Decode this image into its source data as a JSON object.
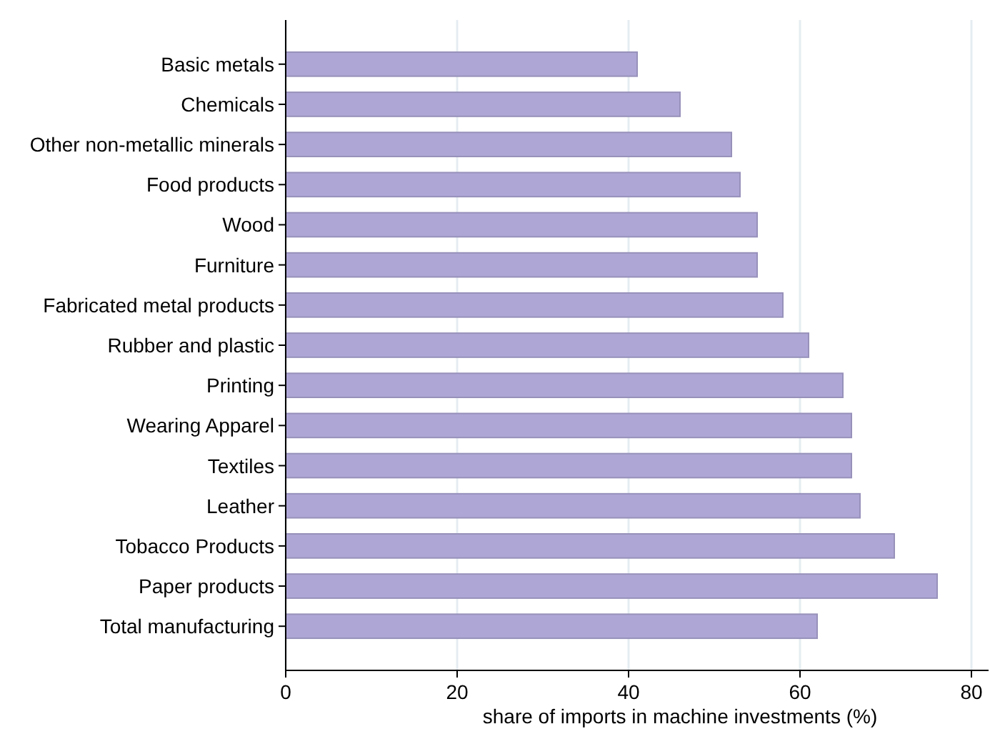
{
  "chart_data": {
    "type": "bar",
    "orientation": "horizontal",
    "xlabel": "share of imports in machine investments (%)",
    "categories": [
      "Basic metals",
      "Chemicals",
      "Other non-metallic minerals",
      "Food products",
      "Wood",
      "Furniture",
      "Fabricated metal products",
      "Rubber and plastic",
      "Printing",
      "Wearing Apparel",
      "Textiles",
      "Leather",
      "Tobacco Products",
      "Paper products",
      "Total manufacturing"
    ],
    "values": [
      41,
      46,
      52,
      53,
      55,
      55,
      58,
      61,
      65,
      66,
      66,
      67,
      71,
      76,
      62
    ],
    "color": "#aea7d6",
    "xlim": [
      0,
      82
    ],
    "xticks": [
      0,
      20,
      40,
      60,
      80
    ],
    "grid": "x"
  }
}
